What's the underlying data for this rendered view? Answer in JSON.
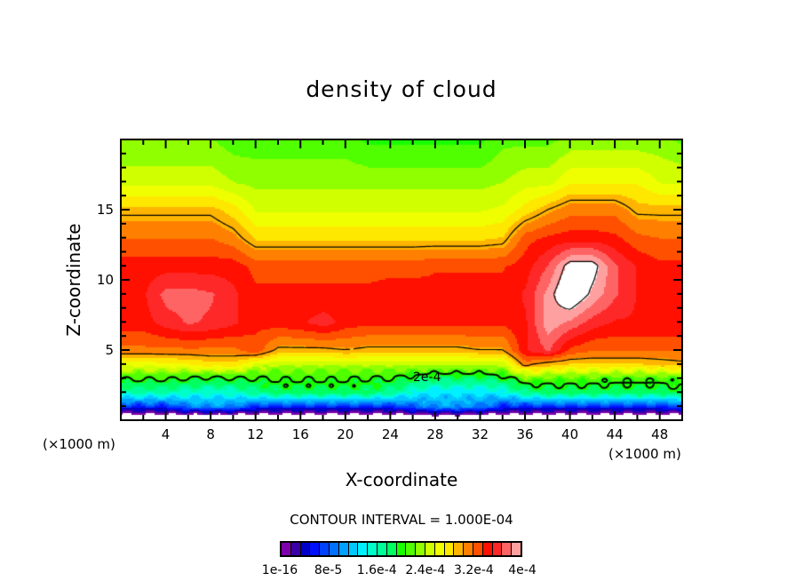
{
  "chart_data": {
    "type": "heatmap",
    "subtype": "filled-contour",
    "title": "density of cloud",
    "xlabel": "X-coordinate",
    "ylabel": "Z-coordinate",
    "x_unit_left": "(×1000 m)",
    "x_unit_right": "(×1000 m)",
    "xlim": [
      0,
      50
    ],
    "ylim": [
      0,
      20
    ],
    "x_ticks": [
      4,
      8,
      12,
      16,
      20,
      24,
      28,
      32,
      36,
      40,
      44,
      48
    ],
    "x_tick_labels": [
      "4",
      "8",
      "12",
      "16",
      "20",
      "24",
      "28",
      "32",
      "36",
      "40",
      "44",
      "48"
    ],
    "y_ticks": [
      5,
      10,
      15
    ],
    "y_tick_labels": [
      "5",
      "10",
      "15"
    ],
    "contour_interval_text": "CONTOUR INTERVAL = 1.000E-04",
    "contour_levels": [
      2,
      3,
      4
    ],
    "contour_label": "2e-4",
    "value_scale": 0.0001,
    "colorbar": {
      "min": 0,
      "max": 4,
      "labels": [
        "1e-16",
        "8e-5",
        "1.6e-4",
        "2.4e-4",
        "3.2e-4",
        "4e-4"
      ],
      "colors": [
        "#7e00aa",
        "#3a00a8",
        "#0000c8",
        "#0010ff",
        "#0040ff",
        "#0070ff",
        "#00a0ff",
        "#00c8ff",
        "#00f0ff",
        "#00ffc8",
        "#00ff98",
        "#00ff60",
        "#18ff00",
        "#50ff00",
        "#90ff00",
        "#d0ff00",
        "#f0ff00",
        "#ffe800",
        "#ffb400",
        "#ff8000",
        "#ff5000",
        "#ff1000",
        "#ff2828",
        "#ff6464",
        "#ffa0a0"
      ],
      "above_color": "#ffffff"
    },
    "x": [
      0,
      2,
      4,
      6,
      8,
      10,
      12,
      14,
      16,
      18,
      20,
      22,
      24,
      26,
      28,
      30,
      32,
      34,
      36,
      38,
      40,
      42,
      44,
      46,
      48,
      50
    ],
    "z": [
      0,
      0.6,
      1,
      2,
      3,
      4,
      5,
      7,
      9,
      11,
      13,
      15,
      17,
      20
    ],
    "values_e-4": [
      [
        -0.6,
        -0.6,
        -0.6,
        -0.6,
        -0.6,
        -0.6,
        -0.6,
        -0.6,
        -0.6,
        -0.6,
        -0.6,
        -0.6,
        -0.6,
        -0.6,
        -0.6,
        -0.6,
        -0.6,
        -0.6,
        -0.6,
        -0.6,
        -0.6,
        -0.6,
        -0.6,
        -0.6,
        -0.6,
        -0.6
      ],
      [
        0.15,
        0.15,
        0.15,
        0.2,
        0.25,
        0.2,
        0.15,
        0.15,
        0.15,
        0.15,
        0.15,
        0.15,
        0.15,
        0.2,
        0.3,
        0.3,
        0.2,
        0.15,
        0.15,
        0.15,
        0.15,
        0.15,
        0.15,
        0.15,
        0.15,
        0.15
      ],
      [
        0.6,
        0.6,
        0.6,
        0.9,
        1.0,
        0.9,
        0.6,
        0.6,
        0.6,
        0.6,
        0.6,
        0.6,
        0.6,
        0.8,
        1.0,
        1.0,
        0.9,
        0.6,
        0.6,
        0.6,
        0.6,
        0.6,
        0.6,
        0.6,
        0.6,
        0.7
      ],
      [
        1.6,
        1.6,
        1.6,
        1.5,
        1.45,
        1.5,
        1.7,
        1.8,
        1.8,
        1.8,
        1.8,
        1.8,
        1.7,
        1.4,
        1.3,
        1.3,
        1.3,
        1.4,
        1.7,
        1.8,
        1.8,
        1.8,
        1.8,
        1.8,
        1.8,
        1.9
      ],
      [
        2.05,
        2.05,
        2.05,
        2.0,
        1.95,
        2.0,
        2.0,
        2.05,
        2.05,
        2.05,
        2.05,
        2.0,
        2.0,
        1.9,
        1.8,
        1.8,
        1.8,
        1.9,
        2.2,
        2.15,
        2.15,
        2.15,
        2.1,
        2.1,
        2.1,
        2.15
      ],
      [
        2.6,
        2.6,
        2.65,
        2.7,
        2.8,
        2.8,
        2.5,
        2.4,
        2.4,
        2.4,
        2.4,
        2.4,
        2.4,
        2.4,
        2.4,
        2.4,
        2.4,
        2.45,
        3.1,
        2.9,
        2.85,
        2.85,
        2.85,
        2.85,
        2.9,
        2.95
      ],
      [
        3.15,
        3.15,
        3.15,
        3.15,
        3.15,
        3.15,
        3.3,
        2.95,
        2.95,
        2.95,
        3.0,
        2.95,
        2.95,
        2.95,
        2.95,
        2.95,
        3.0,
        3.0,
        3.5,
        3.7,
        3.3,
        3.2,
        3.2,
        3.2,
        3.2,
        3.2
      ],
      [
        3.45,
        3.45,
        3.6,
        3.7,
        3.65,
        3.55,
        3.4,
        3.45,
        3.5,
        3.6,
        3.45,
        3.4,
        3.4,
        3.4,
        3.4,
        3.4,
        3.4,
        3.4,
        3.5,
        3.95,
        3.8,
        3.6,
        3.5,
        3.5,
        3.5,
        3.5
      ],
      [
        3.5,
        3.5,
        3.75,
        3.75,
        3.7,
        3.55,
        3.4,
        3.4,
        3.4,
        3.4,
        3.4,
        3.4,
        3.45,
        3.45,
        3.4,
        3.4,
        3.4,
        3.4,
        3.55,
        3.9,
        4.25,
        3.95,
        3.7,
        3.5,
        3.5,
        3.5
      ],
      [
        3.45,
        3.45,
        3.45,
        3.45,
        3.45,
        3.45,
        3.3,
        3.3,
        3.3,
        3.3,
        3.3,
        3.3,
        3.3,
        3.3,
        3.35,
        3.35,
        3.35,
        3.35,
        3.45,
        3.7,
        4.1,
        4.1,
        3.7,
        3.5,
        3.4,
        3.4
      ],
      [
        3.2,
        3.2,
        3.2,
        3.2,
        3.2,
        3.1,
        2.85,
        2.85,
        2.85,
        2.85,
        2.85,
        2.85,
        2.85,
        2.85,
        2.85,
        2.85,
        2.85,
        2.9,
        3.3,
        3.4,
        3.45,
        3.45,
        3.4,
        3.25,
        3.2,
        3.2
      ],
      [
        2.95,
        2.95,
        2.95,
        2.95,
        2.95,
        2.8,
        2.55,
        2.55,
        2.55,
        2.55,
        2.55,
        2.55,
        2.55,
        2.55,
        2.55,
        2.55,
        2.55,
        2.6,
        2.8,
        3.0,
        3.15,
        3.15,
        3.15,
        2.95,
        2.95,
        2.95
      ],
      [
        2.5,
        2.5,
        2.5,
        2.5,
        2.5,
        2.4,
        2.35,
        2.35,
        2.35,
        2.35,
        2.35,
        2.35,
        2.35,
        2.35,
        2.35,
        2.35,
        2.35,
        2.4,
        2.5,
        2.5,
        2.7,
        2.7,
        2.7,
        2.7,
        2.55,
        2.55
      ],
      [
        2.25,
        2.25,
        2.25,
        2.25,
        2.25,
        2.15,
        2.15,
        2.15,
        2.15,
        2.15,
        2.15,
        2.05,
        2.05,
        2.05,
        2.05,
        2.05,
        2.05,
        2.2,
        2.2,
        2.2,
        2.3,
        2.3,
        2.3,
        2.3,
        2.3,
        2.2
      ]
    ]
  }
}
